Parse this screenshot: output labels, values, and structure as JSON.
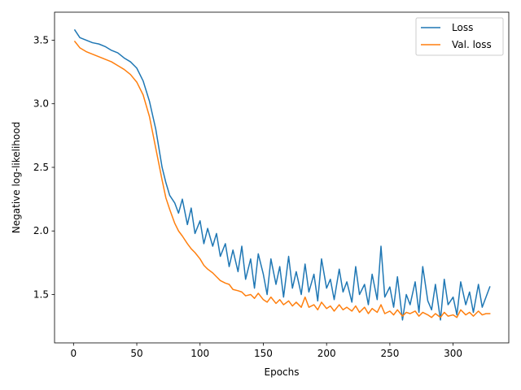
{
  "chart_data": {
    "type": "line",
    "title": "",
    "xlabel": "Epochs",
    "ylabel": "Negative log-likelihood",
    "xlim": [
      -15,
      344
    ],
    "ylim": [
      1.12,
      3.72
    ],
    "xticks": [
      0,
      50,
      100,
      150,
      200,
      250,
      300
    ],
    "yticks": [
      1.5,
      2.0,
      2.5,
      3.0,
      3.5
    ],
    "grid": false,
    "legend_position": "top-right",
    "series": [
      {
        "name": "Loss",
        "color": "#1f77b4",
        "x": [
          1,
          5,
          10,
          15,
          20,
          25,
          30,
          35,
          40,
          45,
          50,
          55,
          60,
          65,
          70,
          73,
          76,
          80,
          83,
          86,
          90,
          93,
          96,
          100,
          103,
          106,
          110,
          113,
          116,
          120,
          123,
          126,
          130,
          133,
          136,
          140,
          143,
          146,
          150,
          153,
          156,
          160,
          163,
          166,
          170,
          173,
          176,
          180,
          183,
          186,
          190,
          193,
          196,
          200,
          203,
          206,
          210,
          213,
          216,
          220,
          223,
          226,
          230,
          233,
          236,
          240,
          243,
          246,
          250,
          253,
          256,
          260,
          263,
          266,
          270,
          273,
          276,
          280,
          283,
          286,
          290,
          293,
          296,
          300,
          303,
          306,
          310,
          313,
          316,
          320,
          323,
          326,
          329
        ],
        "y": [
          3.58,
          3.52,
          3.5,
          3.48,
          3.47,
          3.45,
          3.42,
          3.4,
          3.36,
          3.33,
          3.28,
          3.18,
          3.02,
          2.8,
          2.5,
          2.38,
          2.28,
          2.22,
          2.14,
          2.25,
          2.05,
          2.18,
          1.98,
          2.08,
          1.9,
          2.02,
          1.88,
          1.98,
          1.8,
          1.9,
          1.72,
          1.85,
          1.68,
          1.88,
          1.62,
          1.78,
          1.55,
          1.82,
          1.66,
          1.5,
          1.78,
          1.58,
          1.72,
          1.48,
          1.8,
          1.55,
          1.68,
          1.5,
          1.74,
          1.52,
          1.66,
          1.45,
          1.78,
          1.55,
          1.62,
          1.46,
          1.7,
          1.52,
          1.6,
          1.44,
          1.72,
          1.5,
          1.58,
          1.42,
          1.66,
          1.46,
          1.88,
          1.48,
          1.56,
          1.4,
          1.64,
          1.3,
          1.5,
          1.42,
          1.6,
          1.36,
          1.72,
          1.45,
          1.38,
          1.58,
          1.3,
          1.62,
          1.42,
          1.48,
          1.34,
          1.6,
          1.42,
          1.52,
          1.36,
          1.58,
          1.4,
          1.48,
          1.56
        ]
      },
      {
        "name": "Val. loss",
        "color": "#ff7f0e",
        "x": [
          1,
          5,
          10,
          15,
          20,
          25,
          30,
          35,
          40,
          45,
          50,
          55,
          60,
          65,
          70,
          73,
          76,
          80,
          83,
          86,
          90,
          93,
          96,
          100,
          103,
          106,
          110,
          113,
          116,
          120,
          123,
          126,
          130,
          133,
          136,
          140,
          143,
          146,
          150,
          153,
          156,
          160,
          163,
          166,
          170,
          173,
          176,
          180,
          183,
          186,
          190,
          193,
          196,
          200,
          203,
          206,
          210,
          213,
          216,
          220,
          223,
          226,
          230,
          233,
          236,
          240,
          243,
          246,
          250,
          253,
          256,
          260,
          263,
          266,
          270,
          273,
          276,
          280,
          283,
          286,
          290,
          293,
          296,
          300,
          303,
          306,
          310,
          313,
          316,
          320,
          323,
          326,
          329
        ],
        "y": [
          3.49,
          3.44,
          3.41,
          3.39,
          3.37,
          3.35,
          3.33,
          3.3,
          3.27,
          3.23,
          3.17,
          3.07,
          2.9,
          2.65,
          2.4,
          2.26,
          2.17,
          2.06,
          2.0,
          1.96,
          1.9,
          1.86,
          1.83,
          1.78,
          1.73,
          1.7,
          1.67,
          1.64,
          1.61,
          1.59,
          1.58,
          1.54,
          1.53,
          1.52,
          1.49,
          1.5,
          1.47,
          1.51,
          1.46,
          1.44,
          1.48,
          1.43,
          1.46,
          1.42,
          1.45,
          1.41,
          1.44,
          1.4,
          1.48,
          1.4,
          1.42,
          1.38,
          1.44,
          1.39,
          1.41,
          1.37,
          1.42,
          1.38,
          1.4,
          1.37,
          1.41,
          1.36,
          1.4,
          1.35,
          1.39,
          1.36,
          1.42,
          1.35,
          1.37,
          1.34,
          1.38,
          1.33,
          1.36,
          1.35,
          1.37,
          1.33,
          1.36,
          1.34,
          1.32,
          1.35,
          1.32,
          1.36,
          1.33,
          1.34,
          1.32,
          1.38,
          1.34,
          1.36,
          1.33,
          1.37,
          1.34,
          1.35,
          1.35
        ]
      }
    ]
  }
}
